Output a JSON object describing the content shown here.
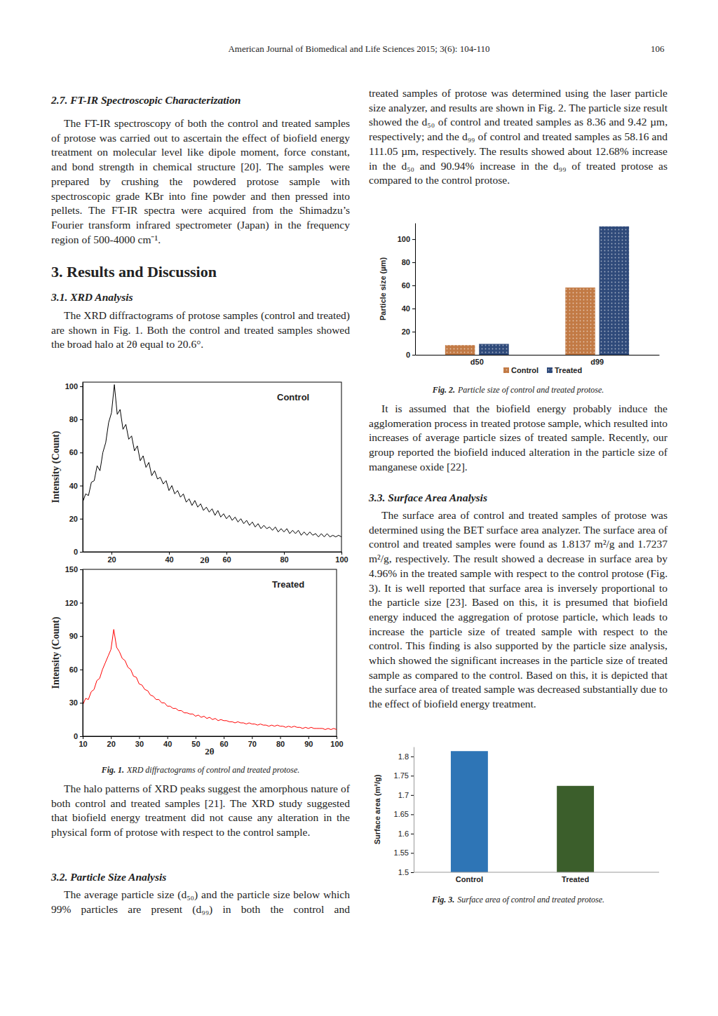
{
  "header": {
    "journal": "American Journal of Biomedical and Life Sciences 2015; 3(6): 104-110",
    "page": "106"
  },
  "text": {
    "ftir_heading": "2.7. FT-IR Spectroscopic Characterization",
    "ftir_p": "The FT-IR spectroscopy of both the control and treated samples of protose was carried out to ascertain the effect of biofield energy treatment on molecular level like dipole moment, force constant, and bond strength in chemical structure [20]. The samples were prepared by crushing the powdered protose sample with spectroscopic grade KBr into fine powder and then pressed into pellets. The FT-IR spectra were acquired from the Shimadzu’s Fourier transform infrared spectrometer (Japan) in the frequency region of 500-4000 cm⁻¹.",
    "results_heading": "3. Results and Discussion",
    "xrd_heading": "3.1. XRD Analysis",
    "xrd_p1": "The XRD diffractograms of protose samples (control and treated) are shown in Fig. 1. Both the control and treated samples showed the broad halo at 2θ equal to 20.6°.",
    "fig1_caption": {
      "label": "Fig. 1.",
      "text": "XRD diffractograms of control and treated protose."
    },
    "xrd_p2": "The halo patterns of XRD peaks suggest the amorphous nature of both control and treated samples [21]. The XRD study suggested that biofield energy treatment did not cause any alteration in the physical form of protose with respect to the control sample.",
    "ps_heading": "3.2. Particle Size Analysis",
    "ps_p1_a": "The average particle size (d₅₀) and the particle size below which 99% particles are present (d₉₉) in both the control and",
    "ps_p1_b": "treated samples of protose was determined using the laser particle size analyzer, and results are shown in Fig. 2. The particle size result showed the d₅₀ of control and treated samples as 8.36 and 9.42 µm, respectively; and the d₉₉ of control and treated samples as 58.16 and 111.05 µm, respectively. The results showed about 12.68% increase in the d₅₀ and 90.94% increase in the d₉₉ of treated protose as compared to the control protose.",
    "fig2_caption": {
      "label": "Fig. 2.",
      "text": "Particle size of control and treated protose."
    },
    "ps_p2": "It is assumed that the biofield energy probably induce the agglomeration process in treated protose sample, which resulted into increases of average particle sizes of treated sample. Recently, our group reported the biofield induced alteration in the particle size of manganese oxide [22].",
    "sa_heading": "3.3. Surface Area Analysis",
    "sa_p": "The surface area of control and treated samples of protose was determined using the BET surface area analyzer. The surface area of control and treated samples were found as 1.8137 m²/g and 1.7237 m²/g, respectively. The result showed a decrease in surface area by 4.96% in the treated sample with respect to the control protose (Fig. 3). It is well reported that surface area is inversely proportional to the particle size [23]. Based on this, it is presumed that biofield energy induced the aggregation of protose particle, which leads to increase the particle size of treated sample with respect to the control. This finding is also supported by the particle size analysis, which showed the significant increases in the particle size of treated sample as compared to the control. Based on this, it is depicted that the surface area of treated sample was decreased substantially due to the effect of biofield energy treatment.",
    "fig3_caption": {
      "label": "Fig. 3.",
      "text": "Surface area of control and treated protose."
    }
  },
  "chart_data": [
    {
      "type": "line",
      "annotation": "Control",
      "x_label": "2θ",
      "y_label": "Intensity (Count)",
      "color": "#000000",
      "x": [
        10,
        11,
        12,
        13,
        14,
        15,
        16,
        17,
        18,
        19,
        20,
        21,
        22,
        23,
        24,
        25,
        26,
        27,
        28,
        29,
        30,
        31,
        32,
        33,
        34,
        35,
        36,
        37,
        38,
        39,
        40,
        41,
        42,
        43,
        44,
        45,
        46,
        47,
        48,
        49,
        50,
        51,
        52,
        53,
        54,
        55,
        56,
        57,
        58,
        59,
        60,
        61,
        62,
        63,
        64,
        65,
        66,
        67,
        68,
        69,
        70,
        71,
        72,
        73,
        74,
        75,
        76,
        77,
        78,
        79,
        80,
        81,
        82,
        83,
        84,
        85,
        86,
        87,
        88,
        89,
        90,
        91,
        92,
        93,
        94,
        95,
        96,
        97,
        98,
        99,
        100
      ],
      "values": [
        30,
        35,
        34,
        42,
        43,
        52,
        49,
        60,
        66,
        78,
        84,
        101,
        83,
        86,
        74,
        77,
        68,
        70,
        61,
        64,
        55,
        58,
        51,
        54,
        46,
        49,
        44,
        45,
        41,
        43,
        37,
        40,
        35,
        37,
        33,
        35,
        30,
        32,
        28,
        31,
        27,
        29,
        25,
        27,
        24,
        26,
        22,
        25,
        21,
        23,
        20,
        22,
        19,
        21,
        18,
        20,
        17,
        19,
        16,
        18,
        15,
        17,
        14,
        16,
        14,
        15,
        13,
        15,
        12,
        14,
        12,
        14,
        11,
        13,
        11,
        13,
        10,
        12,
        10,
        12,
        10,
        11,
        9,
        11,
        9,
        11,
        9,
        10,
        9,
        10,
        9
      ],
      "xlim": [
        10,
        100
      ],
      "ylim": [
        0,
        102.5
      ],
      "xticks": [
        20,
        40,
        60,
        80,
        100
      ],
      "yticks": [
        0,
        20,
        40,
        60,
        80,
        100
      ]
    },
    {
      "type": "line",
      "annotation": "Treated",
      "x_label": "2θ",
      "y_label": "Intensity (Count)",
      "color": "#ff0000",
      "x": [
        10,
        11,
        12,
        13,
        14,
        15,
        16,
        17,
        18,
        19,
        20,
        21,
        22,
        23,
        24,
        25,
        26,
        27,
        28,
        29,
        30,
        31,
        32,
        33,
        34,
        35,
        36,
        37,
        38,
        39,
        40,
        41,
        42,
        43,
        44,
        45,
        46,
        47,
        48,
        49,
        50,
        51,
        52,
        53,
        54,
        55,
        56,
        57,
        58,
        59,
        60,
        61,
        62,
        63,
        64,
        65,
        66,
        67,
        68,
        69,
        70,
        71,
        72,
        73,
        74,
        75,
        76,
        77,
        78,
        79,
        80,
        81,
        82,
        83,
        84,
        85,
        86,
        87,
        88,
        89,
        90,
        91,
        92,
        93,
        94,
        95,
        96,
        97,
        98,
        99,
        100
      ],
      "values": [
        28,
        34,
        33,
        40,
        42,
        50,
        52,
        60,
        66,
        72,
        78,
        96,
        80,
        76,
        70,
        68,
        62,
        60,
        54,
        53,
        47,
        46,
        42,
        41,
        37,
        36,
        33,
        33,
        30,
        30,
        27,
        27,
        25,
        25,
        23,
        23,
        21,
        21,
        20,
        20,
        18,
        19,
        17,
        18,
        16,
        17,
        15,
        16,
        14,
        15,
        14,
        14,
        13,
        13,
        12,
        13,
        12,
        12,
        11,
        12,
        11,
        11,
        10,
        11,
        10,
        10,
        9,
        10,
        9,
        10,
        9,
        9,
        8,
        9,
        8,
        9,
        8,
        8,
        7,
        8,
        7,
        8,
        7,
        7,
        7,
        7,
        6,
        7,
        6,
        7,
        6
      ],
      "xlim": [
        10,
        100
      ],
      "ylim": [
        0,
        150
      ],
      "xticks": [
        10,
        20,
        30,
        40,
        50,
        60,
        70,
        80,
        90,
        100
      ],
      "yticks": [
        0,
        30,
        60,
        90,
        120,
        150
      ]
    },
    {
      "type": "bar",
      "y_label": "Particle size (µm)",
      "categories": [
        "d50",
        "d99"
      ],
      "series": [
        {
          "name": "Control",
          "color": "#c27a45",
          "values": [
            8.36,
            58.16
          ]
        },
        {
          "name": "Treated",
          "color": "#2f4a7a",
          "values": [
            9.42,
            111.05
          ]
        }
      ],
      "ylim": [
        0,
        114
      ],
      "yticks": [
        0,
        20,
        40,
        60,
        80,
        100
      ],
      "legend": "bottom"
    },
    {
      "type": "bar",
      "y_label": "Surface area (m²/g)",
      "categories": [
        "Control",
        "Treated"
      ],
      "values": [
        1.8137,
        1.7237
      ],
      "colors": [
        "#2e75b6",
        "#3b5e2b"
      ],
      "ylim": [
        1.5,
        1.825
      ],
      "yticks": [
        1.5,
        1.55,
        1.6,
        1.65,
        1.7,
        1.75,
        1.8
      ]
    }
  ]
}
